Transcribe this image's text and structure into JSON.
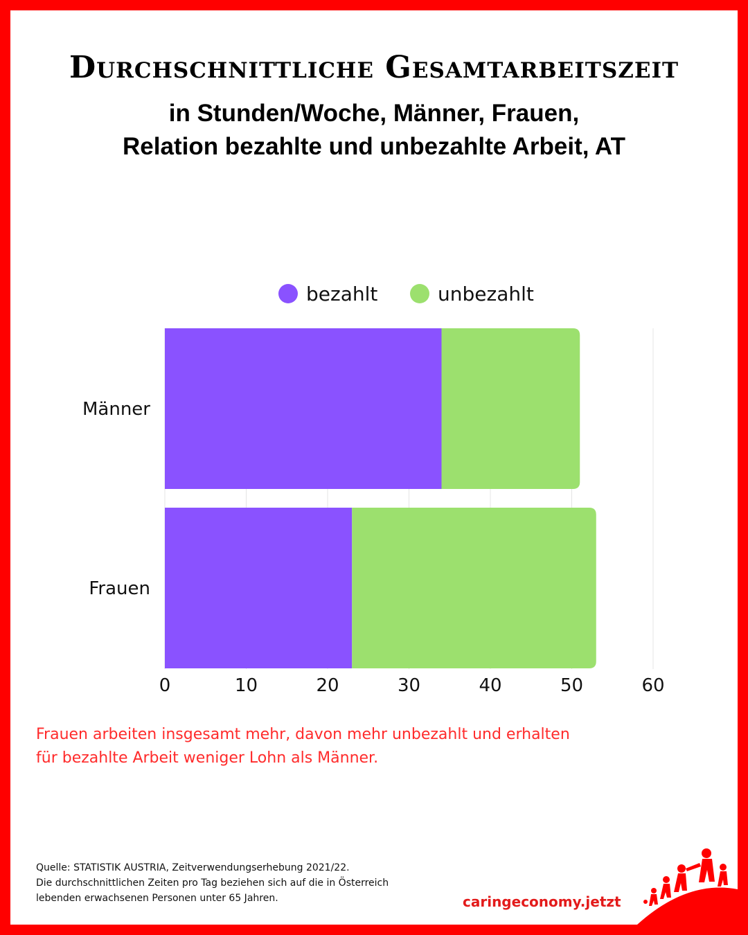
{
  "title": "Durchschnittliche Gesamtarbeitszeit",
  "subtitle_line1": "in Stunden/Woche, Männer, Frauen,",
  "subtitle_line2": "Relation bezahlte und unbezahlte Arbeit, AT",
  "note_line1": "Frauen arbeiten insgesamt mehr, davon mehr unbezahlt und erhalten",
  "note_line2": "für bezahlte Arbeit weniger Lohn als Männer.",
  "source_line1": "Quelle: STATISTIK AUSTRIA, Zeitverwendungserhebung 2021/22.",
  "source_line2": "Die durchschnittlichen Zeiten pro Tag beziehen sich auf die in Österreich",
  "source_line3": "lebenden erwachsenen Personen unter 65 Jahren.",
  "brand": "caringeconomy.jetzt",
  "colors": {
    "border": "#ff0000",
    "paid": "#8a52ff",
    "unpaid": "#9ce06e",
    "note": "#ff2b2b",
    "brand": "#e31b1b"
  },
  "chart_data": {
    "type": "bar",
    "orientation": "horizontal",
    "stacked": true,
    "categories": [
      "Männer",
      "Frauen"
    ],
    "series": [
      {
        "name": "bezahlt",
        "color": "#8a52ff",
        "values": [
          34,
          23
        ]
      },
      {
        "name": "unbezahlt",
        "color": "#9ce06e",
        "values": [
          17,
          30
        ]
      }
    ],
    "xlim": [
      0,
      60
    ],
    "xticks": [
      0,
      10,
      20,
      30,
      40,
      50,
      60
    ],
    "legend_position": "top",
    "grid": true
  }
}
